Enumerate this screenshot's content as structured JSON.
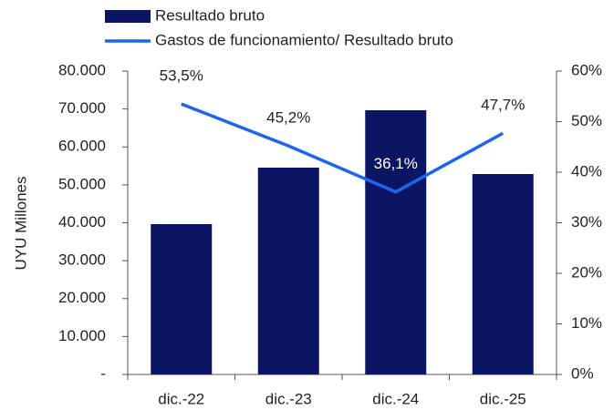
{
  "chart_data": {
    "type": "bar",
    "categories": [
      "dic.-22",
      "dic.-23",
      "dic.-24",
      "dic.-25"
    ],
    "y_label": "UYU Millones",
    "ylim": [
      0,
      80000
    ],
    "yticks": [
      {
        "value": 0,
        "label": "-"
      },
      {
        "value": 10000,
        "label": "10.000"
      },
      {
        "value": 20000,
        "label": "20.000"
      },
      {
        "value": 30000,
        "label": "30.000"
      },
      {
        "value": 40000,
        "label": "40.000"
      },
      {
        "value": 50000,
        "label": "50.000"
      },
      {
        "value": 60000,
        "label": "60.000"
      },
      {
        "value": 70000,
        "label": "70.000"
      },
      {
        "value": 80000,
        "label": "80.000"
      }
    ],
    "y2lim": [
      0,
      60
    ],
    "y2ticks": [
      {
        "value": 0,
        "label": "0%"
      },
      {
        "value": 10,
        "label": "10%"
      },
      {
        "value": 20,
        "label": "20%"
      },
      {
        "value": 30,
        "label": "30%"
      },
      {
        "value": 40,
        "label": "40%"
      },
      {
        "value": 50,
        "label": "50%"
      },
      {
        "value": 60,
        "label": "60%"
      }
    ],
    "series": [
      {
        "name": "Resultado bruto",
        "type": "bar",
        "color": "#0c1464",
        "values": [
          39640,
          54540,
          69670,
          52850
        ]
      },
      {
        "name": "Gastos de funcionamiento/ Resultado bruto",
        "type": "line",
        "axis": "y2",
        "color": "#1a66ee",
        "values": [
          53.5,
          45.2,
          36.1,
          47.7
        ],
        "value_labels": [
          "53,5%",
          "45,2%",
          "36,1%",
          "47,7%"
        ]
      }
    ]
  }
}
